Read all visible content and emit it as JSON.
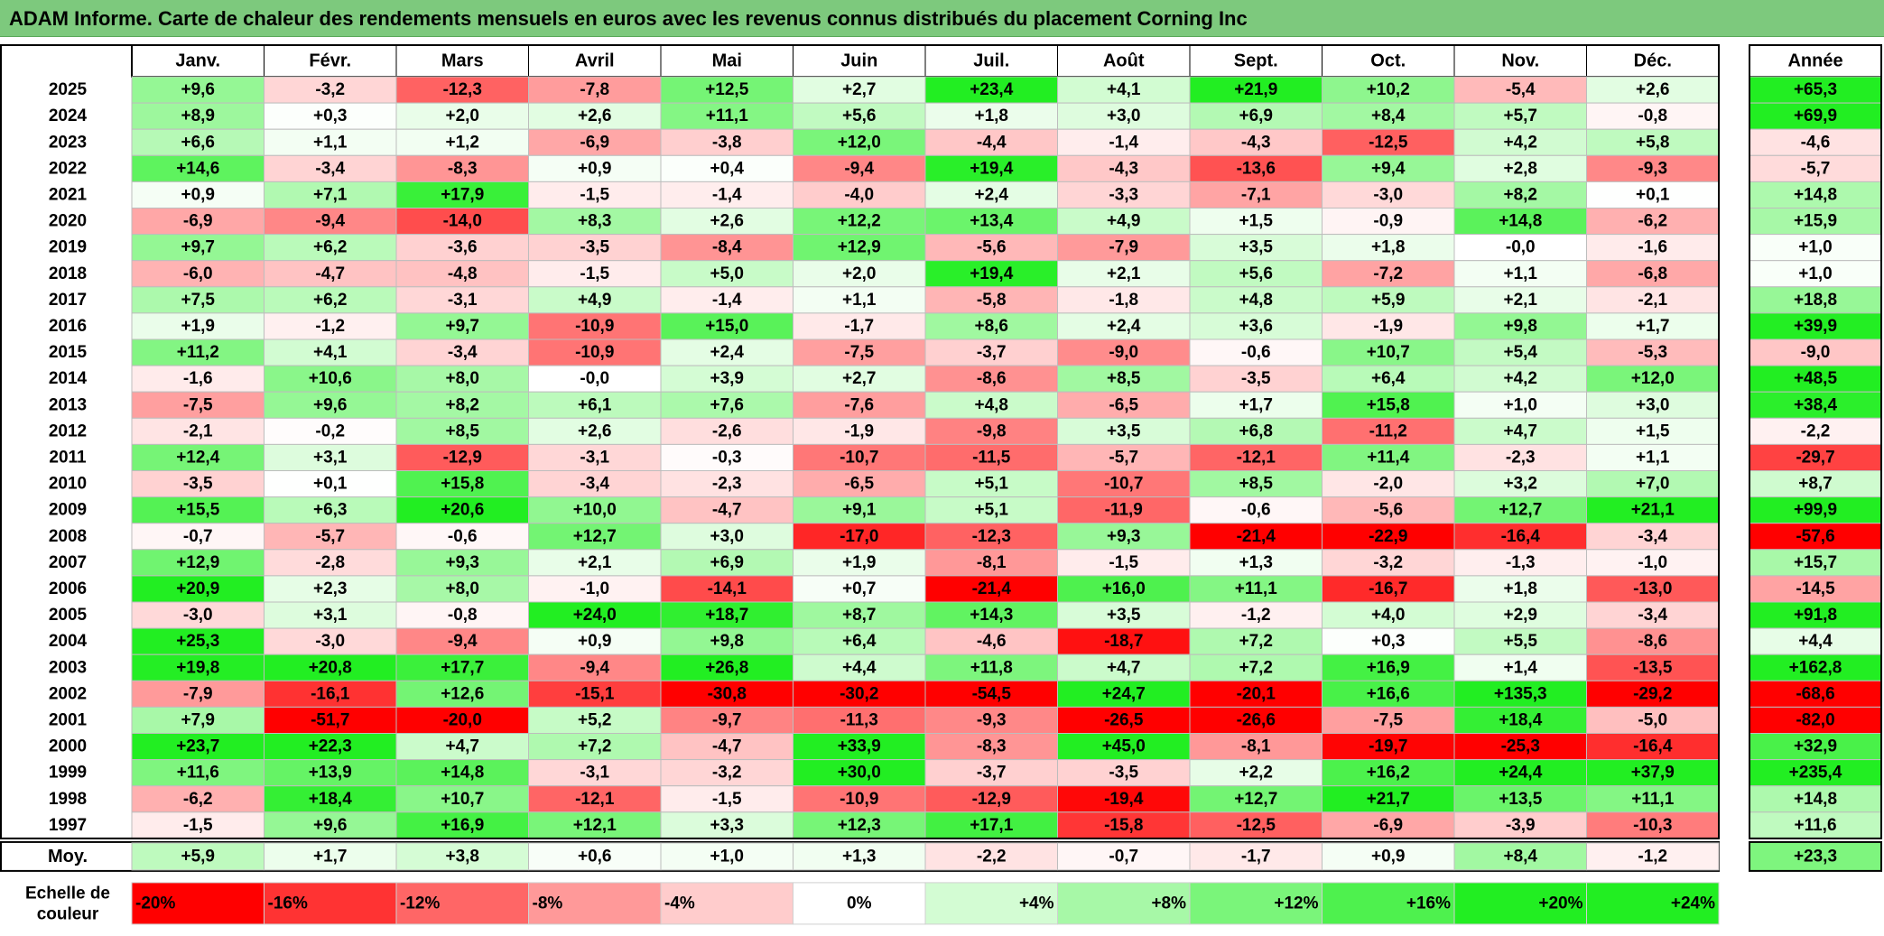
{
  "title": "ADAM Informe. Carte de chaleur des rendements mensuels en euros avec les revenus connus distribués du placement Corning Inc",
  "chart_data": {
    "type": "heatmap",
    "title": "ADAM Informe. Carte de chaleur des rendements mensuels en euros avec les revenus connus distribués du placement Corning Inc",
    "columns": [
      "Janv.",
      "Févr.",
      "Mars",
      "Avril",
      "Mai",
      "Juin",
      "Juil.",
      "Août",
      "Sept.",
      "Oct.",
      "Nov.",
      "Déc."
    ],
    "year_header": "Année",
    "rows": [
      {
        "year": "2025",
        "values": [
          "+9,6",
          "-3,2",
          "-12,3",
          "-7,8",
          "+12,5",
          "+2,7",
          "+23,4",
          "+4,1",
          "+21,9",
          "+10,2",
          "-5,4",
          "+2,6"
        ],
        "annual": "+65,3"
      },
      {
        "year": "2024",
        "values": [
          "+8,9",
          "+0,3",
          "+2,0",
          "+2,6",
          "+11,1",
          "+5,6",
          "+1,8",
          "+3,0",
          "+6,9",
          "+8,4",
          "+5,7",
          "-0,8"
        ],
        "annual": "+69,9"
      },
      {
        "year": "2023",
        "values": [
          "+6,6",
          "+1,1",
          "+1,2",
          "-6,9",
          "-3,8",
          "+12,0",
          "-4,4",
          "-1,4",
          "-4,3",
          "-12,5",
          "+4,2",
          "+5,8"
        ],
        "annual": "-4,6"
      },
      {
        "year": "2022",
        "values": [
          "+14,6",
          "-3,4",
          "-8,3",
          "+0,9",
          "+0,4",
          "-9,4",
          "+19,4",
          "-4,3",
          "-13,6",
          "+9,4",
          "+2,8",
          "-9,3"
        ],
        "annual": "-5,7"
      },
      {
        "year": "2021",
        "values": [
          "+0,9",
          "+7,1",
          "+17,9",
          "-1,5",
          "-1,4",
          "-4,0",
          "+2,4",
          "-3,3",
          "-7,1",
          "-3,0",
          "+8,2",
          "+0,1"
        ],
        "annual": "+14,8"
      },
      {
        "year": "2020",
        "values": [
          "-6,9",
          "-9,4",
          "-14,0",
          "+8,3",
          "+2,6",
          "+12,2",
          "+13,4",
          "+4,9",
          "+1,5",
          "-0,9",
          "+14,8",
          "-6,2"
        ],
        "annual": "+15,9"
      },
      {
        "year": "2019",
        "values": [
          "+9,7",
          "+6,2",
          "-3,6",
          "-3,5",
          "-8,4",
          "+12,9",
          "-5,6",
          "-7,9",
          "+3,5",
          "+1,8",
          "-0,0",
          "-1,6"
        ],
        "annual": "+1,0"
      },
      {
        "year": "2018",
        "values": [
          "-6,0",
          "-4,7",
          "-4,8",
          "-1,5",
          "+5,0",
          "+2,0",
          "+19,4",
          "+2,1",
          "+5,6",
          "-7,2",
          "+1,1",
          "-6,8"
        ],
        "annual": "+1,0"
      },
      {
        "year": "2017",
        "values": [
          "+7,5",
          "+6,2",
          "-3,1",
          "+4,9",
          "-1,4",
          "+1,1",
          "-5,8",
          "-1,8",
          "+4,8",
          "+5,9",
          "+2,1",
          "-2,1"
        ],
        "annual": "+18,8"
      },
      {
        "year": "2016",
        "values": [
          "+1,9",
          "-1,2",
          "+9,7",
          "-10,9",
          "+15,0",
          "-1,7",
          "+8,6",
          "+2,4",
          "+3,6",
          "-1,9",
          "+9,8",
          "+1,7"
        ],
        "annual": "+39,9"
      },
      {
        "year": "2015",
        "values": [
          "+11,2",
          "+4,1",
          "-3,4",
          "-10,9",
          "+2,4",
          "-7,5",
          "-3,7",
          "-9,0",
          "-0,6",
          "+10,7",
          "+5,4",
          "-5,3"
        ],
        "annual": "-9,0"
      },
      {
        "year": "2014",
        "values": [
          "-1,6",
          "+10,6",
          "+8,0",
          "-0,0",
          "+3,9",
          "+2,7",
          "-8,6",
          "+8,5",
          "-3,5",
          "+6,4",
          "+4,2",
          "+12,0"
        ],
        "annual": "+48,5"
      },
      {
        "year": "2013",
        "values": [
          "-7,5",
          "+9,6",
          "+8,2",
          "+6,1",
          "+7,6",
          "-7,6",
          "+4,8",
          "-6,5",
          "+1,7",
          "+15,8",
          "+1,0",
          "+3,0"
        ],
        "annual": "+38,4"
      },
      {
        "year": "2012",
        "values": [
          "-2,1",
          "-0,2",
          "+8,5",
          "+2,6",
          "-2,6",
          "-1,9",
          "-9,8",
          "+3,5",
          "+6,8",
          "-11,2",
          "+4,7",
          "+1,5"
        ],
        "annual": "-2,2"
      },
      {
        "year": "2011",
        "values": [
          "+12,4",
          "+3,1",
          "-12,9",
          "-3,1",
          "-0,3",
          "-10,7",
          "-11,5",
          "-5,7",
          "-12,1",
          "+11,4",
          "-2,3",
          "+1,1"
        ],
        "annual": "-29,7"
      },
      {
        "year": "2010",
        "values": [
          "-3,5",
          "+0,1",
          "+15,8",
          "-3,4",
          "-2,3",
          "-6,5",
          "+5,1",
          "-10,7",
          "+8,5",
          "-2,0",
          "+3,2",
          "+7,0"
        ],
        "annual": "+8,7"
      },
      {
        "year": "2009",
        "values": [
          "+15,5",
          "+6,3",
          "+20,6",
          "+10,0",
          "-4,7",
          "+9,1",
          "+5,1",
          "-11,9",
          "-0,6",
          "-5,6",
          "+12,7",
          "+21,1"
        ],
        "annual": "+99,9"
      },
      {
        "year": "2008",
        "values": [
          "-0,7",
          "-5,7",
          "-0,6",
          "+12,7",
          "+3,0",
          "-17,0",
          "-12,3",
          "+9,3",
          "-21,4",
          "-22,9",
          "-16,4",
          "-3,4"
        ],
        "annual": "-57,6"
      },
      {
        "year": "2007",
        "values": [
          "+12,9",
          "-2,8",
          "+9,3",
          "+2,1",
          "+6,9",
          "+1,9",
          "-8,1",
          "-1,5",
          "+1,3",
          "-3,2",
          "-1,3",
          "-1,0"
        ],
        "annual": "+15,7"
      },
      {
        "year": "2006",
        "values": [
          "+20,9",
          "+2,3",
          "+8,0",
          "-1,0",
          "-14,1",
          "+0,7",
          "-21,4",
          "+16,0",
          "+11,1",
          "-16,7",
          "+1,8",
          "-13,0"
        ],
        "annual": "-14,5"
      },
      {
        "year": "2005",
        "values": [
          "-3,0",
          "+3,1",
          "-0,8",
          "+24,0",
          "+18,7",
          "+8,7",
          "+14,3",
          "+3,5",
          "-1,2",
          "+4,0",
          "+2,9",
          "-3,4"
        ],
        "annual": "+91,8"
      },
      {
        "year": "2004",
        "values": [
          "+25,3",
          "-3,0",
          "-9,4",
          "+0,9",
          "+9,8",
          "+6,4",
          "-4,6",
          "-18,7",
          "+7,2",
          "+0,3",
          "+5,5",
          "-8,6"
        ],
        "annual": "+4,4"
      },
      {
        "year": "2003",
        "values": [
          "+19,8",
          "+20,8",
          "+17,7",
          "-9,4",
          "+26,8",
          "+4,4",
          "+11,8",
          "+4,7",
          "+7,2",
          "+16,9",
          "+1,4",
          "-13,5"
        ],
        "annual": "+162,8"
      },
      {
        "year": "2002",
        "values": [
          "-7,9",
          "-16,1",
          "+12,6",
          "-15,1",
          "-30,8",
          "-30,2",
          "-54,5",
          "+24,7",
          "-20,1",
          "+16,6",
          "+135,3",
          "-29,2"
        ],
        "annual": "-68,6"
      },
      {
        "year": "2001",
        "values": [
          "+7,9",
          "-51,7",
          "-20,0",
          "+5,2",
          "-9,7",
          "-11,3",
          "-9,3",
          "-26,5",
          "-26,6",
          "-7,5",
          "+18,4",
          "-5,0"
        ],
        "annual": "-82,0"
      },
      {
        "year": "2000",
        "values": [
          "+23,7",
          "+22,3",
          "+4,7",
          "+7,2",
          "-4,7",
          "+33,9",
          "-8,3",
          "+45,0",
          "-8,1",
          "-19,7",
          "-25,3",
          "-16,4"
        ],
        "annual": "+32,9"
      },
      {
        "year": "1999",
        "values": [
          "+11,6",
          "+13,9",
          "+14,8",
          "-3,1",
          "-3,2",
          "+30,0",
          "-3,7",
          "-3,5",
          "+2,2",
          "+16,2",
          "+24,4",
          "+37,9"
        ],
        "annual": "+235,4"
      },
      {
        "year": "1998",
        "values": [
          "-6,2",
          "+18,4",
          "+10,7",
          "-12,1",
          "-1,5",
          "-10,9",
          "-12,9",
          "-19,4",
          "+12,7",
          "+21,7",
          "+13,5",
          "+11,1"
        ],
        "annual": "+14,8"
      },
      {
        "year": "1997",
        "values": [
          "-1,5",
          "+9,6",
          "+16,9",
          "+12,1",
          "+3,3",
          "+12,3",
          "+17,1",
          "-15,8",
          "-12,5",
          "-6,9",
          "-3,9",
          "-10,3"
        ],
        "annual": "+11,6"
      }
    ],
    "average": {
      "label": "Moy.",
      "values": [
        "+5,9",
        "+1,7",
        "+3,8",
        "+0,6",
        "+1,0",
        "+1,3",
        "-2,2",
        "-0,7",
        "-1,7",
        "+0,9",
        "+8,4",
        "-1,2"
      ],
      "annual": "+23,3"
    },
    "color_scale": {
      "label_line1": "Echelle de",
      "label_line2": "couleur",
      "steps": [
        "-20%",
        "-16%",
        "-12%",
        "-8%",
        "-4%",
        "0%",
        "+4%",
        "+8%",
        "+12%",
        "+16%",
        "+20%",
        "+24%"
      ],
      "step_values": [
        -20,
        -16,
        -12,
        -8,
        -4,
        0,
        4,
        8,
        12,
        16,
        20,
        24
      ]
    },
    "colors": {
      "max_red": "#ff0000",
      "max_green": "#22ee22",
      "neutral": "#ffffff",
      "title_background": "#7dc97d"
    }
  }
}
